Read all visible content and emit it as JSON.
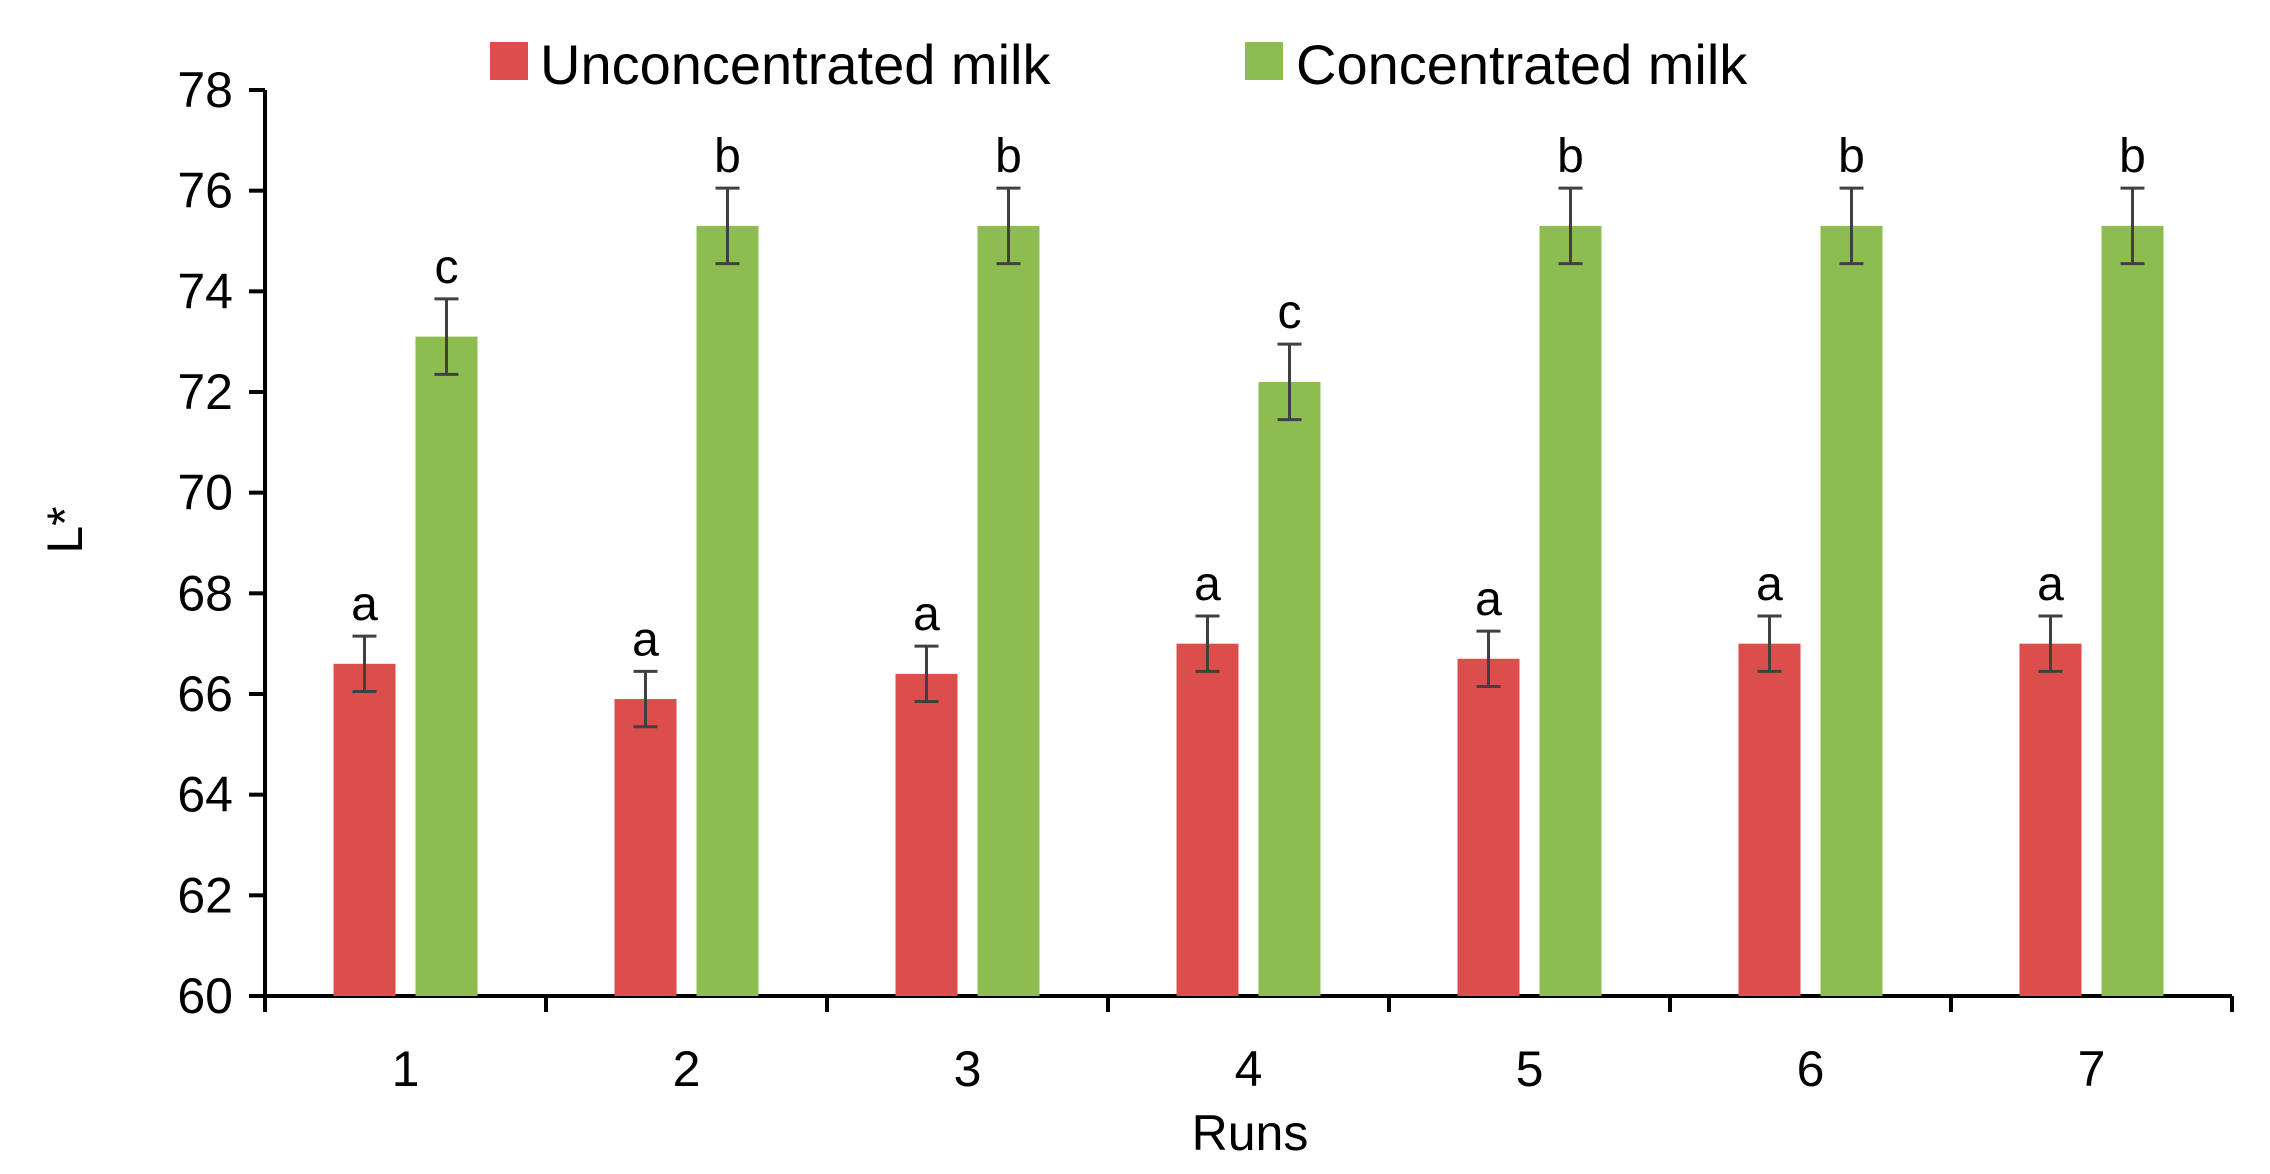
{
  "chart_data": {
    "type": "bar",
    "xlabel": "Runs",
    "ylabel": "L*",
    "ylim": [
      60,
      78
    ],
    "yticks": [
      60,
      62,
      64,
      66,
      68,
      70,
      72,
      74,
      76,
      78
    ],
    "categories": [
      "1",
      "2",
      "3",
      "4",
      "5",
      "6",
      "7"
    ],
    "legend_position": "top-center",
    "grid": false,
    "series": [
      {
        "name": "Unconcentrated milk",
        "color": "#dc4e4c",
        "values": [
          66.6,
          65.9,
          66.4,
          67.0,
          66.7,
          67.0,
          67.0
        ],
        "errors": [
          0.55,
          0.55,
          0.55,
          0.55,
          0.55,
          0.55,
          0.55
        ],
        "labels": [
          "a",
          "a",
          "a",
          "a",
          "a",
          "a",
          "a"
        ]
      },
      {
        "name": "Concentrated milk",
        "color": "#8dbd50",
        "values": [
          73.1,
          75.3,
          75.3,
          72.2,
          75.3,
          75.3,
          75.3
        ],
        "errors": [
          0.75,
          0.75,
          0.75,
          0.75,
          0.75,
          0.75,
          0.75
        ],
        "labels": [
          "c",
          "b",
          "b",
          "c",
          "b",
          "b",
          "b"
        ]
      }
    ]
  }
}
